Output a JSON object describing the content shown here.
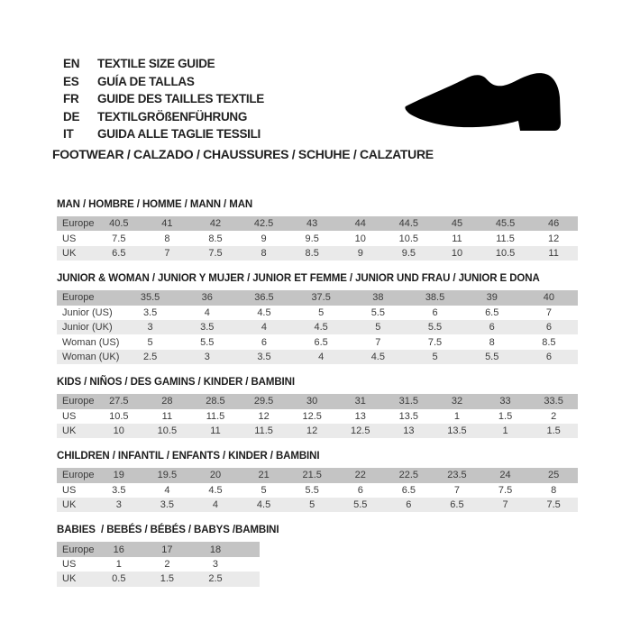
{
  "header": {
    "languages": [
      {
        "code": "EN",
        "label": "TEXTILE SIZE GUIDE"
      },
      {
        "code": "ES",
        "label": "GUÍA DE TALLAS"
      },
      {
        "code": "FR",
        "label": "GUIDE DES TAILLES TEXTILE"
      },
      {
        "code": "DE",
        "label": "TEXTILGRÖßENFÜHRUNG"
      },
      {
        "code": "IT",
        "label": "GUIDA ALLE TAGLIE TESSILI"
      }
    ],
    "category_line": "FOOTWEAR / CALZADO / CHAUSSURES / SCHUHE / CALZATURE",
    "shoe_icon": "dress-shoe-silhouette"
  },
  "colors": {
    "header_row": "#c4c4c4",
    "alt_row": "#eaeaea",
    "text": "#3b3b3b",
    "heading_text": "#1d1d1d",
    "shoe": "#000000"
  },
  "tables": [
    {
      "title": "MAN / HOMBRE / HOMME / MANN / MAN",
      "rows": [
        {
          "label": "Europe",
          "shade": "dark",
          "values": [
            "40.5",
            "41",
            "42",
            "42.5",
            "43",
            "44",
            "44.5",
            "45",
            "45.5",
            "46"
          ]
        },
        {
          "label": "US",
          "shade": "none",
          "values": [
            "7.5",
            "8",
            "8.5",
            "9",
            "9.5",
            "10",
            "10.5",
            "11",
            "11.5",
            "12"
          ]
        },
        {
          "label": "UK",
          "shade": "light",
          "values": [
            "6.5",
            "7",
            "7.5",
            "8",
            "8.5",
            "9",
            "9.5",
            "10",
            "10.5",
            "11"
          ]
        }
      ]
    },
    {
      "title": "JUNIOR & WOMAN / JUNIOR Y MUJER / JUNIOR ET FEMME / JUNIOR UND FRAU / JUNIOR E DONA",
      "rows": [
        {
          "label": "Europe",
          "shade": "dark",
          "values": [
            "35.5",
            "36",
            "36.5",
            "37.5",
            "38",
            "38.5",
            "39",
            "40"
          ]
        },
        {
          "label": "Junior (US)",
          "shade": "none",
          "values": [
            "3.5",
            "4",
            "4.5",
            "5",
            "5.5",
            "6",
            "6.5",
            "7"
          ]
        },
        {
          "label": "Junior (UK)",
          "shade": "light",
          "values": [
            "3",
            "3.5",
            "4",
            "4.5",
            "5",
            "5.5",
            "6",
            "6"
          ]
        },
        {
          "label": "Woman (US)",
          "shade": "none",
          "values": [
            "5",
            "5.5",
            "6",
            "6.5",
            "7",
            "7.5",
            "8",
            "8.5"
          ]
        },
        {
          "label": "Woman (UK)",
          "shade": "light",
          "values": [
            "2.5",
            "3",
            "3.5",
            "4",
            "4.5",
            "5",
            "5.5",
            "6"
          ]
        }
      ]
    },
    {
      "title": "KIDS / NIÑOS / DES GAMINS / KINDER / BAMBINI",
      "rows": [
        {
          "label": "Europe",
          "shade": "dark",
          "values": [
            "27.5",
            "28",
            "28.5",
            "29.5",
            "30",
            "31",
            "31.5",
            "32",
            "33",
            "33.5"
          ]
        },
        {
          "label": "US",
          "shade": "none",
          "values": [
            "10.5",
            "11",
            "11.5",
            "12",
            "12.5",
            "13",
            "13.5",
            "1",
            "1.5",
            "2"
          ]
        },
        {
          "label": "UK",
          "shade": "light",
          "values": [
            "10",
            "10.5",
            "11",
            "11.5",
            "12",
            "12.5",
            "13",
            "13.5",
            "1",
            "1.5"
          ]
        }
      ]
    },
    {
      "title": "CHILDREN / INFANTIL / ENFANTS / KINDER / BAMBINI",
      "rows": [
        {
          "label": "Europe",
          "shade": "dark",
          "values": [
            "19",
            "19.5",
            "20",
            "21",
            "21.5",
            "22",
            "22.5",
            "23.5",
            "24",
            "25"
          ]
        },
        {
          "label": "US",
          "shade": "none",
          "values": [
            "3.5",
            "4",
            "4.5",
            "5",
            "5.5",
            "6",
            "6.5",
            "7",
            "7.5",
            "8"
          ]
        },
        {
          "label": "UK",
          "shade": "light",
          "values": [
            "3",
            "3.5",
            "4",
            "4.5",
            "5",
            "5.5",
            "6",
            "6.5",
            "7",
            "7.5"
          ]
        }
      ]
    },
    {
      "title": "BABIES  / BEBÉS / BÉBÉS / BABYS /BAMBINI",
      "rows": [
        {
          "label": "Europe",
          "shade": "dark",
          "values": [
            "16",
            "17",
            "18"
          ]
        },
        {
          "label": "US",
          "shade": "none",
          "values": [
            "1",
            "2",
            "3"
          ]
        },
        {
          "label": "UK",
          "shade": "light",
          "values": [
            "0.5",
            "1.5",
            "2.5"
          ]
        }
      ]
    }
  ]
}
